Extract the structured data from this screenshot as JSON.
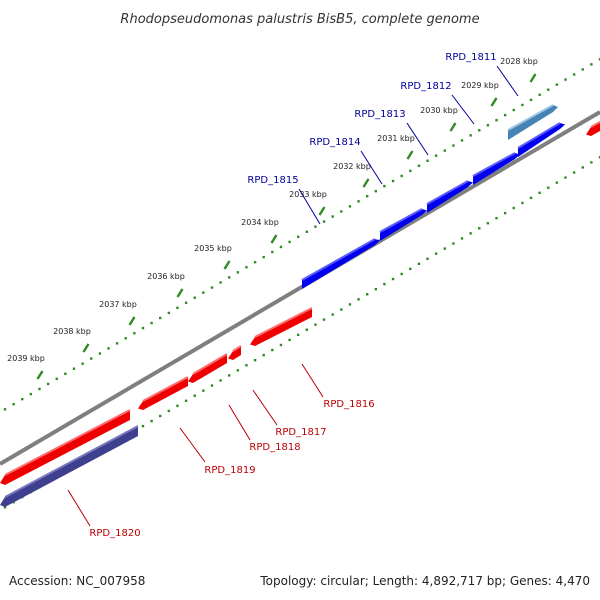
{
  "title": "Rhodopseudomonas palustris BisB5, complete genome",
  "footer": {
    "accession": "Accession: NC_007958",
    "summary": "Topology: circular; Length: 4,892,717 bp; Genes: 4,470"
  },
  "colors": {
    "backbone": "#7f7f7f",
    "forward_gene": "#0000ee",
    "reverse_gene": "#ee0000",
    "highlight_gene": "#4682b4",
    "highlight_gene_reverse": "#3f3f8f",
    "forward_label": "#00009a",
    "reverse_label": "#b80000",
    "tick": "#2e8b22"
  },
  "scale_ticks": [
    {
      "label": "2028 kbp",
      "kbp": 2028
    },
    {
      "label": "2029 kbp",
      "kbp": 2029
    },
    {
      "label": "2030 kbp",
      "kbp": 2030
    },
    {
      "label": "2031 kbp",
      "kbp": 2031
    },
    {
      "label": "2032 kbp",
      "kbp": 2032
    },
    {
      "label": "2033 kbp",
      "kbp": 2033
    },
    {
      "label": "2034 kbp",
      "kbp": 2034
    },
    {
      "label": "2035 kbp",
      "kbp": 2035
    },
    {
      "label": "2036 kbp",
      "kbp": 2036
    },
    {
      "label": "2037 kbp",
      "kbp": 2037
    },
    {
      "label": "2038 kbp",
      "kbp": 2038
    },
    {
      "label": "2039 kbp",
      "kbp": 2039
    }
  ],
  "genes": [
    {
      "label": "RPD_1811",
      "strand": "forward",
      "highlight": true
    },
    {
      "label": "RPD_1812",
      "strand": "forward"
    },
    {
      "label": "RPD_1813",
      "strand": "forward"
    },
    {
      "label": "RPD_1814",
      "strand": "forward"
    },
    {
      "label": "RPD_1815",
      "strand": "forward"
    },
    {
      "label": "RPD_1816",
      "strand": "reverse"
    },
    {
      "label": "RPD_1817",
      "strand": "reverse"
    },
    {
      "label": "RPD_1818",
      "strand": "reverse"
    },
    {
      "label": "RPD_1819",
      "strand": "reverse"
    },
    {
      "label": "RPD_1820",
      "strand": "reverse",
      "highlight": true
    }
  ]
}
